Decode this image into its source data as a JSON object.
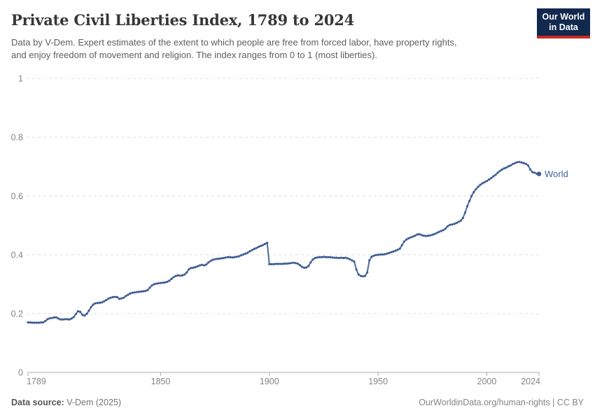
{
  "header": {
    "title": "Private Civil Liberties Index, 1789 to 2024",
    "subtitle_lines": [
      "Data by V-Dem. Expert estimates of the extent to which people are free from forced labor, have property rights,",
      "and enjoy freedom of movement and religion. The index ranges from 0 to 1 (most liberties)."
    ],
    "logo": {
      "line1": "Our World",
      "line2": "in Data"
    }
  },
  "chart_data": {
    "type": "line",
    "title": "Private Civil Liberties Index, 1789 to 2024",
    "xlabel": "",
    "ylabel": "",
    "xlim": [
      1789,
      2024
    ],
    "ylim": [
      0,
      1
    ],
    "x_ticks": [
      1789,
      1850,
      1900,
      1950,
      2000,
      2024
    ],
    "y_ticks": [
      0,
      0.2,
      0.4,
      0.6,
      0.8,
      1
    ],
    "grid": "horizontal-dashed",
    "legend_position": "end-of-line-label",
    "series": [
      {
        "name": "World",
        "start_year": 1789,
        "values": [
          0.17,
          0.17,
          0.169,
          0.169,
          0.169,
          0.169,
          0.17,
          0.17,
          0.175,
          0.181,
          0.184,
          0.185,
          0.187,
          0.187,
          0.183,
          0.18,
          0.18,
          0.181,
          0.181,
          0.18,
          0.183,
          0.188,
          0.198,
          0.208,
          0.206,
          0.196,
          0.193,
          0.199,
          0.21,
          0.222,
          0.231,
          0.235,
          0.236,
          0.237,
          0.238,
          0.242,
          0.246,
          0.251,
          0.254,
          0.256,
          0.257,
          0.256,
          0.25,
          0.252,
          0.254,
          0.26,
          0.264,
          0.268,
          0.271,
          0.272,
          0.273,
          0.274,
          0.275,
          0.276,
          0.277,
          0.28,
          0.288,
          0.296,
          0.3,
          0.302,
          0.303,
          0.304,
          0.305,
          0.306,
          0.308,
          0.312,
          0.318,
          0.324,
          0.328,
          0.33,
          0.329,
          0.33,
          0.333,
          0.34,
          0.351,
          0.355,
          0.356,
          0.358,
          0.361,
          0.364,
          0.366,
          0.364,
          0.367,
          0.374,
          0.379,
          0.383,
          0.385,
          0.386,
          0.387,
          0.388,
          0.389,
          0.391,
          0.392,
          0.392,
          0.391,
          0.392,
          0.393,
          0.395,
          0.398,
          0.401,
          0.404,
          0.407,
          0.412,
          0.416,
          0.42,
          0.423,
          0.427,
          0.43,
          0.433,
          0.437,
          0.441,
          0.368,
          0.368,
          0.368,
          0.369,
          0.369,
          0.369,
          0.369,
          0.37,
          0.37,
          0.371,
          0.372,
          0.373,
          0.372,
          0.37,
          0.365,
          0.359,
          0.356,
          0.357,
          0.362,
          0.374,
          0.384,
          0.389,
          0.391,
          0.392,
          0.392,
          0.393,
          0.392,
          0.392,
          0.392,
          0.391,
          0.39,
          0.39,
          0.389,
          0.39,
          0.389,
          0.39,
          0.388,
          0.385,
          0.381,
          0.377,
          0.35,
          0.333,
          0.328,
          0.327,
          0.328,
          0.34,
          0.381,
          0.393,
          0.397,
          0.399,
          0.4,
          0.401,
          0.401,
          0.402,
          0.404,
          0.406,
          0.409,
          0.411,
          0.414,
          0.417,
          0.421,
          0.433,
          0.445,
          0.452,
          0.456,
          0.459,
          0.462,
          0.465,
          0.469,
          0.47,
          0.467,
          0.465,
          0.464,
          0.465,
          0.466,
          0.468,
          0.471,
          0.474,
          0.478,
          0.481,
          0.484,
          0.489,
          0.497,
          0.502,
          0.503,
          0.505,
          0.508,
          0.512,
          0.516,
          0.525,
          0.543,
          0.565,
          0.583,
          0.6,
          0.613,
          0.623,
          0.631,
          0.638,
          0.643,
          0.647,
          0.651,
          0.656,
          0.661,
          0.667,
          0.672,
          0.679,
          0.685,
          0.69,
          0.694,
          0.697,
          0.701,
          0.704,
          0.709,
          0.712,
          0.715,
          0.716,
          0.714,
          0.712,
          0.709,
          0.704,
          0.69,
          0.681,
          0.679,
          0.676,
          0.675
        ]
      }
    ]
  },
  "footer": {
    "source_label": "Data source:",
    "source_value": " V-Dem (2025)",
    "credit": "OurWorldinData.org/human-rights | CC BY"
  },
  "colors": {
    "line": "#4C6A9C",
    "dot": "#3D5B93",
    "world_label": "#44639C",
    "grid": "#DCDCDC",
    "axis": "#ABABAB",
    "tick_label": "#858585",
    "logo_bg": "#12294E",
    "logo_red": "#CA2B20"
  }
}
